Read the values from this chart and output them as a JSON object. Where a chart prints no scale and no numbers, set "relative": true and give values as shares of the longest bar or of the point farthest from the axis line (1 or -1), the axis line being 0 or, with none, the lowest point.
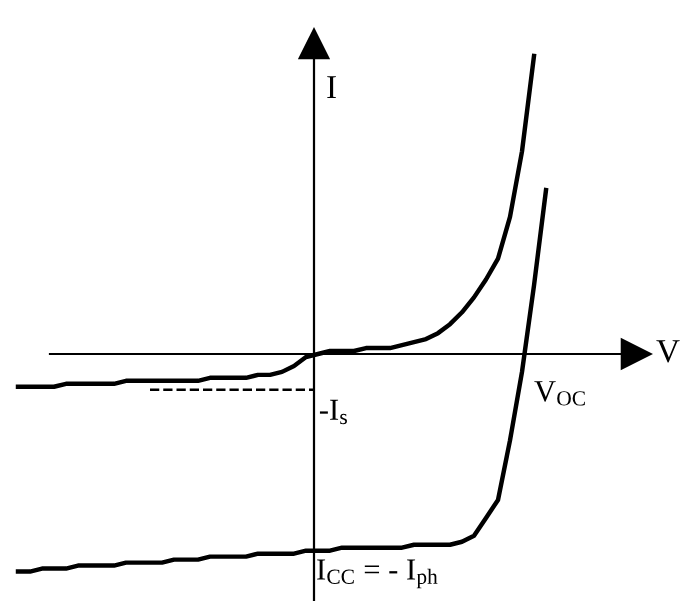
{
  "chart_data": {
    "type": "line",
    "relative": true,
    "xlabel": "V",
    "ylabel": "I",
    "legend": false,
    "marker": "none",
    "line_style": "solid",
    "categories": [
      null,
      null,
      null,
      null,
      null,
      null,
      null,
      null,
      null,
      null,
      null,
      null,
      null,
      null,
      null,
      null,
      null,
      null,
      null,
      null,
      null,
      null,
      null,
      null,
      null,
      null,
      null,
      null,
      null,
      null,
      null,
      null,
      null,
      null,
      null,
      null,
      null,
      null,
      null,
      null,
      null,
      null,
      null,
      null,
      null
    ],
    "series": [
      {
        "color": "#000000",
        "values": [
          -0.11,
          -0.11,
          -0.11,
          -0.11,
          -0.1,
          -0.1,
          -0.1,
          -0.1,
          -0.1,
          -0.09,
          -0.09,
          -0.09,
          -0.09,
          -0.09,
          -0.09,
          -0.09,
          -0.08,
          -0.08,
          -0.08,
          -0.08,
          -0.07,
          -0.07,
          -0.06,
          -0.04,
          -0.01,
          0.0,
          0.01,
          0.01,
          0.01,
          0.02,
          0.02,
          0.02,
          0.03,
          0.04,
          0.05,
          0.07,
          0.1,
          0.14,
          0.19,
          0.25,
          0.32,
          0.46,
          0.68,
          1.0,
          null
        ]
      },
      {
        "color": "#000000",
        "values": [
          -0.73,
          -0.73,
          -0.72,
          -0.72,
          -0.72,
          -0.71,
          -0.71,
          -0.71,
          -0.71,
          -0.7,
          -0.7,
          -0.7,
          -0.7,
          -0.69,
          -0.69,
          -0.69,
          -0.68,
          -0.68,
          -0.68,
          -0.68,
          -0.67,
          -0.67,
          -0.67,
          -0.67,
          -0.66,
          -0.66,
          -0.66,
          -0.65,
          -0.65,
          -0.65,
          -0.65,
          -0.65,
          -0.65,
          -0.64,
          -0.64,
          -0.64,
          -0.64,
          -0.63,
          -0.61,
          -0.55,
          -0.49,
          -0.29,
          -0.06,
          0.23,
          0.55
        ]
      }
    ],
    "ref_lines": [
      {
        "axis": "y",
        "value": -0.12,
        "label": "-I$_{s}$",
        "line_style": "dashed",
        "color": "#000000"
      }
    ],
    "annotations": [
      "V$_{OC}$",
      "I$_{CC}$ = - I$_{ph}$"
    ]
  }
}
